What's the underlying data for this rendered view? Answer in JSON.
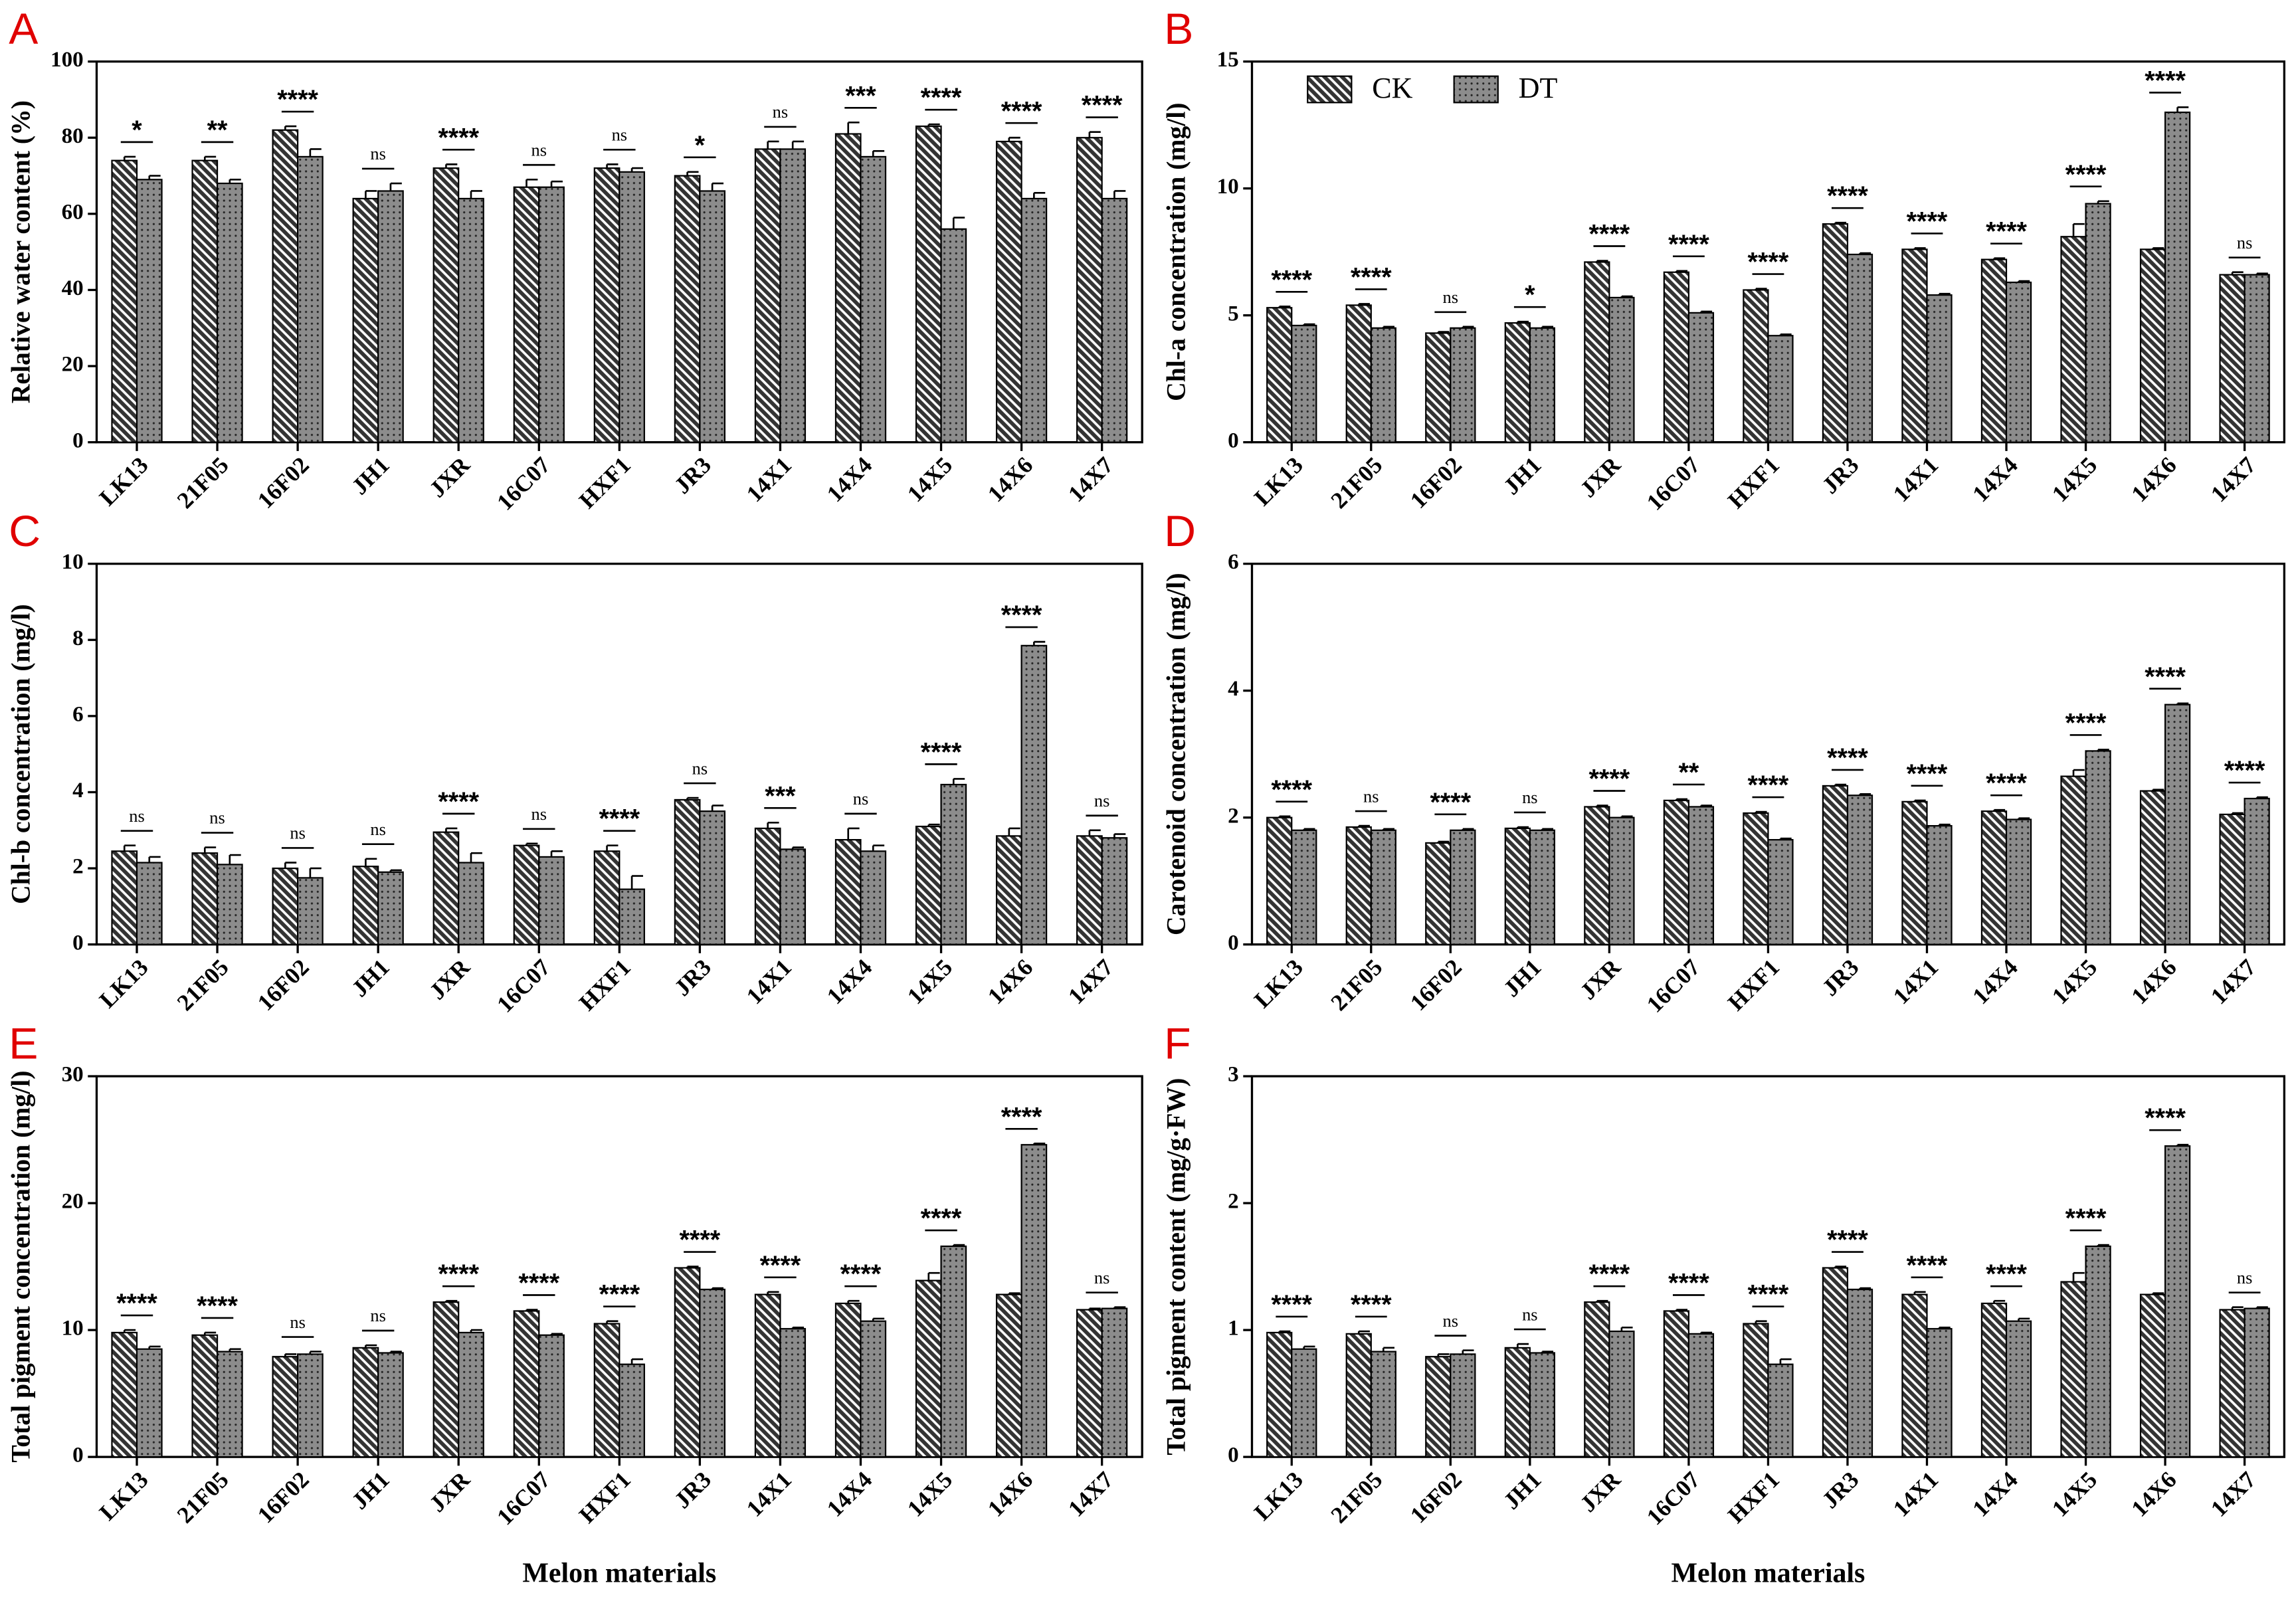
{
  "chart_data": [
    {
      "type": "bar",
      "label": "A",
      "ylabel": "Relative water content (%)",
      "categories": [
        "LK13",
        "21F05",
        "16F02",
        "JH1",
        "JXR",
        "16C07",
        "HXF1",
        "JR3",
        "14X1",
        "14X4",
        "14X5",
        "14X6",
        "14X7"
      ],
      "series": [
        {
          "color": "#333333",
          "pattern": "hatch",
          "values": [
            74,
            74,
            82,
            64,
            72,
            67,
            72,
            70,
            77,
            81,
            83,
            79,
            80
          ],
          "errors": [
            1,
            1,
            1,
            2,
            1,
            2,
            1,
            1,
            2,
            3,
            0.5,
            1,
            1.5
          ]
        },
        {
          "color": "#8c8c8c",
          "pattern": "dots",
          "values": [
            69,
            68,
            75,
            66,
            64,
            67,
            71,
            66,
            77,
            75,
            56,
            64,
            64
          ],
          "errors": [
            1,
            1,
            2,
            2,
            2,
            1.5,
            1,
            2,
            2,
            1.5,
            3,
            1.5,
            2
          ]
        }
      ],
      "significance": [
        "*",
        "**",
        "****",
        "ns",
        "****",
        "ns",
        "ns",
        "*",
        "ns",
        "***",
        "****",
        "****",
        "****"
      ],
      "ylim": [
        0,
        100
      ],
      "yticks": [
        0,
        20,
        40,
        60,
        80,
        100
      ]
    },
    {
      "type": "bar",
      "label": "B",
      "ylabel": "Chl-a concentration (mg/l)",
      "legend": true,
      "categories": [
        "LK13",
        "21F05",
        "16F02",
        "JH1",
        "JXR",
        "16C07",
        "HXF1",
        "JR3",
        "14X1",
        "14X4",
        "14X5",
        "14X6",
        "14X7"
      ],
      "series": [
        {
          "name": "CK",
          "color": "#333333",
          "pattern": "hatch",
          "values": [
            5.3,
            5.4,
            4.3,
            4.7,
            7.1,
            6.7,
            6.0,
            8.6,
            7.6,
            7.2,
            8.1,
            7.6,
            6.6
          ],
          "errors": [
            0.05,
            0.05,
            0.05,
            0.05,
            0.05,
            0.05,
            0.05,
            0.05,
            0.05,
            0.05,
            0.5,
            0.05,
            0.1
          ]
        },
        {
          "name": "DT",
          "color": "#8c8c8c",
          "pattern": "dots",
          "values": [
            4.6,
            4.5,
            4.5,
            4.5,
            5.7,
            5.1,
            4.2,
            7.4,
            5.8,
            6.3,
            9.4,
            13.0,
            6.6
          ],
          "errors": [
            0.05,
            0.05,
            0.05,
            0.05,
            0.05,
            0.05,
            0.05,
            0.05,
            0.05,
            0.05,
            0.1,
            0.2,
            0.05
          ]
        }
      ],
      "significance": [
        "****",
        "****",
        "ns",
        "*",
        "****",
        "****",
        "****",
        "****",
        "****",
        "****",
        "****",
        "****",
        "ns"
      ],
      "ylim": [
        0,
        15
      ],
      "yticks": [
        0,
        5,
        10,
        15
      ]
    },
    {
      "type": "bar",
      "label": "C",
      "ylabel": "Chl-b concentration (mg/l)",
      "categories": [
        "LK13",
        "21F05",
        "16F02",
        "JH1",
        "JXR",
        "16C07",
        "HXF1",
        "JR3",
        "14X1",
        "14X4",
        "14X5",
        "14X6",
        "14X7"
      ],
      "series": [
        {
          "color": "#333333",
          "pattern": "hatch",
          "values": [
            2.45,
            2.4,
            2.0,
            2.05,
            2.95,
            2.6,
            2.45,
            3.8,
            3.05,
            2.75,
            3.1,
            2.85,
            2.85
          ],
          "errors": [
            0.15,
            0.15,
            0.15,
            0.2,
            0.1,
            0.05,
            0.15,
            0.05,
            0.15,
            0.3,
            0.05,
            0.2,
            0.15
          ]
        },
        {
          "color": "#8c8c8c",
          "pattern": "dots",
          "values": [
            2.15,
            2.1,
            1.75,
            1.9,
            2.15,
            2.3,
            1.45,
            3.5,
            2.5,
            2.45,
            4.2,
            7.85,
            2.8
          ],
          "errors": [
            0.15,
            0.25,
            0.25,
            0.05,
            0.25,
            0.15,
            0.35,
            0.15,
            0.05,
            0.15,
            0.15,
            0.1,
            0.1
          ]
        }
      ],
      "significance": [
        "ns",
        "ns",
        "ns",
        "ns",
        "****",
        "ns",
        "****",
        "ns",
        "***",
        "ns",
        "****",
        "****",
        "ns"
      ],
      "ylim": [
        0,
        10
      ],
      "yticks": [
        0,
        2,
        4,
        6,
        8,
        10
      ]
    },
    {
      "type": "bar",
      "label": "D",
      "ylabel": "Carotenoid concentration (mg/l)",
      "categories": [
        "LK13",
        "21F05",
        "16F02",
        "JH1",
        "JXR",
        "16C07",
        "HXF1",
        "JR3",
        "14X1",
        "14X4",
        "14X5",
        "14X6",
        "14X7"
      ],
      "series": [
        {
          "color": "#333333",
          "pattern": "hatch",
          "values": [
            2.0,
            1.85,
            1.6,
            1.83,
            2.17,
            2.27,
            2.07,
            2.5,
            2.25,
            2.1,
            2.65,
            2.42,
            2.05
          ],
          "errors": [
            0.02,
            0.02,
            0.02,
            0.02,
            0.02,
            0.02,
            0.02,
            0.02,
            0.02,
            0.02,
            0.1,
            0.02,
            0.02
          ]
        },
        {
          "color": "#8c8c8c",
          "pattern": "dots",
          "values": [
            1.8,
            1.8,
            1.8,
            1.8,
            2.0,
            2.17,
            1.65,
            2.35,
            1.87,
            1.97,
            3.05,
            3.78,
            2.3
          ],
          "errors": [
            0.02,
            0.02,
            0.02,
            0.02,
            0.02,
            0.02,
            0.02,
            0.02,
            0.02,
            0.02,
            0.02,
            0.02,
            0.02
          ]
        }
      ],
      "significance": [
        "****",
        "ns",
        "****",
        "ns",
        "****",
        "**",
        "****",
        "****",
        "****",
        "****",
        "****",
        "****",
        "****"
      ],
      "ylim": [
        0,
        6
      ],
      "yticks": [
        0,
        2,
        4,
        6
      ]
    },
    {
      "type": "bar",
      "label": "E",
      "ylabel": "Total pigment concentration (mg/l)",
      "xlabel": "Melon materials",
      "categories": [
        "LK13",
        "21F05",
        "16F02",
        "JH1",
        "JXR",
        "16C07",
        "HXF1",
        "JR3",
        "14X1",
        "14X4",
        "14X5",
        "14X6",
        "14X7"
      ],
      "series": [
        {
          "color": "#333333",
          "pattern": "hatch",
          "values": [
            9.8,
            9.6,
            7.9,
            8.6,
            12.2,
            11.5,
            10.5,
            14.9,
            12.8,
            12.1,
            13.9,
            12.8,
            11.6
          ],
          "errors": [
            0.2,
            0.2,
            0.2,
            0.2,
            0.1,
            0.1,
            0.2,
            0.1,
            0.2,
            0.2,
            0.6,
            0.1,
            0.1
          ]
        },
        {
          "color": "#8c8c8c",
          "pattern": "dots",
          "values": [
            8.5,
            8.3,
            8.1,
            8.2,
            9.8,
            9.6,
            7.3,
            13.2,
            10.1,
            10.7,
            16.6,
            24.6,
            11.7
          ],
          "errors": [
            0.2,
            0.2,
            0.2,
            0.1,
            0.2,
            0.1,
            0.4,
            0.1,
            0.1,
            0.2,
            0.1,
            0.1,
            0.1
          ]
        }
      ],
      "significance": [
        "****",
        "****",
        "ns",
        "ns",
        "****",
        "****",
        "****",
        "****",
        "****",
        "****",
        "****",
        "****",
        "ns"
      ],
      "ylim": [
        0,
        30
      ],
      "yticks": [
        0,
        10,
        20,
        30
      ]
    },
    {
      "type": "bar",
      "label": "F",
      "ylabel": "Total pigment content (mg/g·FW)",
      "xlabel": "Melon materials",
      "categories": [
        "LK13",
        "21F05",
        "16F02",
        "JH1",
        "JXR",
        "16C07",
        "HXF1",
        "JR3",
        "14X1",
        "14X4",
        "14X5",
        "14X6",
        "14X7"
      ],
      "series": [
        {
          "color": "#333333",
          "pattern": "hatch",
          "values": [
            0.98,
            0.97,
            0.79,
            0.86,
            1.22,
            1.15,
            1.05,
            1.49,
            1.28,
            1.21,
            1.38,
            1.28,
            1.16
          ],
          "errors": [
            0.01,
            0.02,
            0.02,
            0.03,
            0.01,
            0.01,
            0.02,
            0.01,
            0.02,
            0.02,
            0.07,
            0.01,
            0.02
          ]
        },
        {
          "color": "#8c8c8c",
          "pattern": "dots",
          "values": [
            0.85,
            0.83,
            0.81,
            0.82,
            0.99,
            0.97,
            0.73,
            1.32,
            1.01,
            1.07,
            1.66,
            2.45,
            1.17
          ],
          "errors": [
            0.02,
            0.03,
            0.03,
            0.01,
            0.03,
            0.01,
            0.04,
            0.01,
            0.01,
            0.02,
            0.01,
            0.01,
            0.01
          ]
        }
      ],
      "significance": [
        "****",
        "****",
        "ns",
        "ns",
        "****",
        "****",
        "****",
        "****",
        "****",
        "****",
        "****",
        "****",
        "ns"
      ],
      "ylim": [
        0,
        3
      ],
      "yticks": [
        0,
        1,
        2,
        3
      ]
    }
  ]
}
